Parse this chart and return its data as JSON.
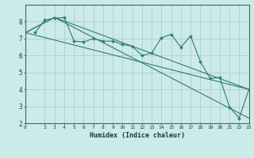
{
  "title": "",
  "xlabel": "Humidex (Indice chaleur)",
  "ylabel": "",
  "bg_color": "#cceae8",
  "grid_color": "#aacfcc",
  "line_color": "#2d7d6e",
  "xlim": [
    0,
    23
  ],
  "ylim": [
    2,
    9
  ],
  "yticks": [
    2,
    3,
    4,
    5,
    6,
    7,
    8
  ],
  "xticks": [
    0,
    2,
    3,
    4,
    5,
    6,
    7,
    8,
    9,
    10,
    11,
    12,
    13,
    14,
    15,
    16,
    17,
    18,
    19,
    20,
    21,
    22,
    23
  ],
  "scatter_x": [
    1,
    2,
    3,
    4,
    5,
    6,
    7,
    8,
    9,
    10,
    11,
    12,
    13,
    14,
    15,
    16,
    17,
    18,
    19,
    20,
    21,
    22,
    23
  ],
  "scatter_y": [
    7.35,
    8.1,
    8.2,
    8.25,
    6.85,
    6.8,
    7.0,
    6.85,
    6.85,
    6.65,
    6.55,
    6.0,
    6.15,
    7.05,
    7.25,
    6.5,
    7.15,
    5.65,
    4.65,
    4.7,
    2.95,
    2.3,
    4.0
  ],
  "line1_x": [
    0,
    23
  ],
  "line1_y": [
    7.35,
    4.0
  ],
  "line2_x": [
    0,
    3,
    23
  ],
  "line2_y": [
    7.35,
    8.25,
    2.3
  ],
  "line3_x": [
    0,
    3,
    23
  ],
  "line3_y": [
    7.35,
    8.25,
    4.0
  ]
}
